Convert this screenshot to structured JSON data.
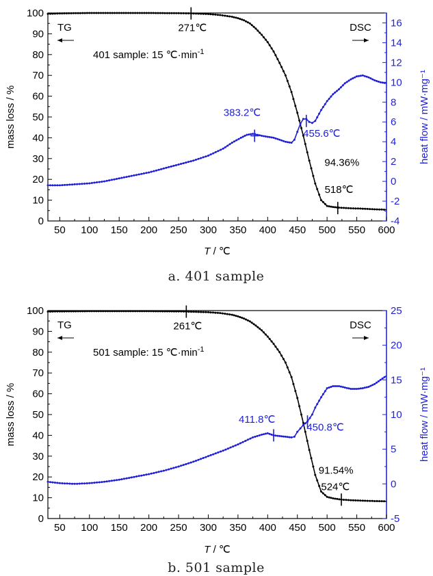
{
  "chart_data": [
    {
      "type": "line",
      "caption": "a.  401  sample",
      "xlabel_italic": "T",
      "xlabel_unit": " / ℃",
      "ylabel_left": "mass loss / %",
      "ylabel_right": "heat flow / mW·mg⁻¹",
      "xlim": [
        30,
        600
      ],
      "x_ticks": [
        50,
        100,
        150,
        200,
        250,
        300,
        350,
        400,
        450,
        500,
        550,
        600
      ],
      "ylim_left": [
        0,
        100
      ],
      "y_ticks_left": [
        0,
        10,
        20,
        30,
        40,
        50,
        60,
        70,
        80,
        90,
        100
      ],
      "ylim_right": [
        -4,
        17
      ],
      "y_ticks_right": [
        -4,
        -2,
        0,
        2,
        4,
        6,
        8,
        10,
        12,
        14,
        16
      ],
      "colors": {
        "tg": "#000000",
        "dsc": "#1f1fd8"
      },
      "legend": [
        {
          "text": "TG",
          "arrow": "left"
        },
        {
          "text": "DSC",
          "arrow": "right"
        }
      ],
      "condition_text": "401 sample: 15 ℃·min",
      "condition_sup": "-1",
      "annotations": [
        {
          "text": "271℃",
          "series": "tg",
          "x": 271,
          "y": 99.8,
          "mark": "v"
        },
        {
          "text": "94.36%",
          "series": "tg",
          "x": 518,
          "y": 28,
          "mark": "none"
        },
        {
          "text": "518℃",
          "series": "tg",
          "x": 518,
          "y": 6.2,
          "mark": "v"
        },
        {
          "text": "383.2℃",
          "series": "dsc",
          "x": 378,
          "y": 4.6,
          "mark": "plus"
        },
        {
          "text": "455.6℃",
          "series": "dsc",
          "x": 465,
          "y": 6.1,
          "mark": "v"
        }
      ],
      "series": [
        {
          "key": "tg",
          "axis": "left",
          "marker": "dot",
          "x": [
            30,
            50,
            100,
            150,
            200,
            250,
            271,
            300,
            320,
            340,
            350,
            360,
            370,
            380,
            390,
            400,
            410,
            420,
            430,
            440,
            450,
            460,
            470,
            480,
            490,
            500,
            510,
            520,
            540,
            560,
            580,
            600
          ],
          "y": [
            99.6,
            99.8,
            100,
            100,
            100,
            99.9,
            99.8,
            99.5,
            99,
            98.2,
            97.5,
            96.5,
            95,
            92.5,
            89.5,
            86,
            81.5,
            76,
            70,
            62,
            52,
            41,
            29,
            18,
            10,
            7.2,
            6.7,
            6.4,
            6.1,
            5.9,
            5.6,
            5.4
          ]
        },
        {
          "key": "dsc",
          "axis": "right",
          "marker": "dot",
          "x": [
            30,
            50,
            75,
            100,
            125,
            150,
            175,
            200,
            225,
            250,
            275,
            300,
            325,
            340,
            355,
            365,
            375,
            383,
            390,
            400,
            410,
            420,
            430,
            440,
            445,
            450,
            455,
            460,
            465,
            470,
            475,
            480,
            490,
            500,
            510,
            520,
            530,
            540,
            550,
            560,
            570,
            580,
            590,
            600
          ],
          "y": [
            -0.4,
            -0.4,
            -0.3,
            -0.2,
            0,
            0.3,
            0.6,
            0.9,
            1.3,
            1.7,
            2.1,
            2.6,
            3.3,
            3.9,
            4.4,
            4.7,
            4.8,
            4.7,
            4.6,
            4.5,
            4.4,
            4.2,
            4.0,
            3.9,
            4.2,
            5.0,
            5.8,
            6.3,
            6.3,
            6.0,
            5.9,
            6.1,
            7.2,
            8.1,
            8.8,
            9.3,
            9.9,
            10.3,
            10.6,
            10.7,
            10.5,
            10.2,
            10.0,
            9.9
          ]
        }
      ]
    },
    {
      "type": "line",
      "caption": "b.  501  sample",
      "xlabel_italic": "T",
      "xlabel_unit": " / ℃",
      "ylabel_left": "mass loss / %",
      "ylabel_right": "heat flow / mW·mg⁻¹",
      "xlim": [
        30,
        600
      ],
      "x_ticks": [
        50,
        100,
        150,
        200,
        250,
        300,
        350,
        400,
        450,
        500,
        550,
        600
      ],
      "ylim_left": [
        0,
        100
      ],
      "y_ticks_left": [
        0,
        10,
        20,
        30,
        40,
        50,
        60,
        70,
        80,
        90,
        100
      ],
      "ylim_right": [
        -5,
        25
      ],
      "y_ticks_right": [
        -5,
        0,
        5,
        10,
        15,
        20,
        25
      ],
      "colors": {
        "tg": "#000000",
        "dsc": "#1f1fd8"
      },
      "legend": [
        {
          "text": "TG",
          "arrow": "left"
        },
        {
          "text": "DSC",
          "arrow": "right"
        }
      ],
      "condition_text": "501 sample: 15 ℃·min",
      "condition_sup": "-1",
      "annotations": [
        {
          "text": "261℃",
          "series": "tg",
          "x": 263,
          "y": 99.5,
          "mark": "v"
        },
        {
          "text": "411.8℃",
          "series": "dsc",
          "x": 410,
          "y": 7.0,
          "mark": "v"
        },
        {
          "text": "450.8℃",
          "series": "dsc",
          "x": 467,
          "y": 9.0,
          "mark": "v"
        },
        {
          "text": "91.54%",
          "series": "tg",
          "x": 518,
          "y": 30,
          "mark": "none"
        },
        {
          "text": "524℃",
          "series": "tg",
          "x": 524,
          "y": 9.1,
          "mark": "v"
        }
      ],
      "series": [
        {
          "key": "tg",
          "axis": "left",
          "marker": "dot",
          "x": [
            30,
            50,
            100,
            150,
            200,
            250,
            263,
            300,
            320,
            340,
            350,
            360,
            370,
            380,
            390,
            400,
            410,
            420,
            430,
            440,
            450,
            460,
            470,
            480,
            490,
            500,
            510,
            524,
            540,
            560,
            580,
            600
          ],
          "y": [
            99.5,
            99.6,
            99.7,
            99.7,
            99.7,
            99.6,
            99.5,
            99.2,
            98.8,
            98,
            97.2,
            96.2,
            94.8,
            92.8,
            90.5,
            87.5,
            84,
            80,
            75,
            68,
            58,
            46,
            33,
            21,
            13,
            10.4,
            9.7,
            9.1,
            8.8,
            8.6,
            8.4,
            8.3
          ]
        },
        {
          "key": "dsc",
          "axis": "right",
          "marker": "dot",
          "x": [
            30,
            50,
            75,
            100,
            125,
            150,
            175,
            200,
            225,
            250,
            275,
            300,
            325,
            350,
            375,
            390,
            400,
            410,
            420,
            430,
            440,
            445,
            450,
            455,
            460,
            467,
            475,
            480,
            490,
            500,
            510,
            520,
            530,
            540,
            550,
            560,
            570,
            580,
            590,
            600
          ],
          "y": [
            0.3,
            0.1,
            0.0,
            0.1,
            0.3,
            0.6,
            1.0,
            1.4,
            1.9,
            2.5,
            3.2,
            4.0,
            4.8,
            5.7,
            6.7,
            7.1,
            7.3,
            7.0,
            6.9,
            6.8,
            6.7,
            6.8,
            7.5,
            8.0,
            8.5,
            9.0,
            10.0,
            11.0,
            12.5,
            13.8,
            14.1,
            14.1,
            13.9,
            13.7,
            13.7,
            13.8,
            14.0,
            14.4,
            15.0,
            15.6
          ]
        }
      ]
    }
  ]
}
